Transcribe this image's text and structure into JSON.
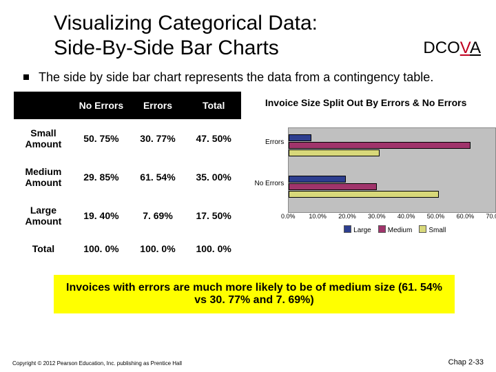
{
  "title_line1": "Visualizing Categorical Data:",
  "title_line2": "Side-By-Side Bar Charts",
  "dcova": {
    "prefix": "DCO",
    "v": "V",
    "a": "A"
  },
  "description": "The side by side bar chart represents the data from a contingency table.",
  "table": {
    "headers": [
      "",
      "No Errors",
      "Errors",
      "Total"
    ],
    "rows": [
      [
        "Small Amount",
        "50. 75%",
        "30. 77%",
        "47. 50%"
      ],
      [
        "Medium Amount",
        "29. 85%",
        "61. 54%",
        "35. 00%"
      ],
      [
        "Large Amount",
        "19. 40%",
        "7. 69%",
        "17. 50%"
      ],
      [
        "Total",
        "100. 0%",
        "100. 0%",
        "100. 0%"
      ]
    ],
    "col_widths": [
      "74px",
      "72px",
      "72px",
      "72px"
    ]
  },
  "chart": {
    "title": "Invoice Size Split Out By Errors & No Errors",
    "categories": [
      "Errors",
      "No Errors"
    ],
    "series": [
      {
        "name": "Large",
        "color": "#2d3e8f"
      },
      {
        "name": "Medium",
        "color": "#a0346b"
      },
      {
        "name": "Small",
        "color": "#d8d87a"
      }
    ],
    "data": {
      "Errors": {
        "Large": 7.69,
        "Medium": 61.54,
        "Small": 30.77
      },
      "No Errors": {
        "Large": 19.4,
        "Medium": 29.85,
        "Small": 50.75
      }
    },
    "x_ticks": [
      "0.0%",
      "10.0%",
      "20.0%",
      "30.0%",
      "40.0%",
      "50.0%",
      "60.0%",
      "70.0%"
    ],
    "x_max": 70,
    "plot_bg": "#c0c0c0"
  },
  "callout": "Invoices with errors are much more likely to be of medium size (61. 54% vs 30. 77% and 7. 69%)",
  "copyright": "Copyright © 2012 Pearson Education, Inc. publishing as Prentice Hall",
  "chap": "Chap 2-33"
}
